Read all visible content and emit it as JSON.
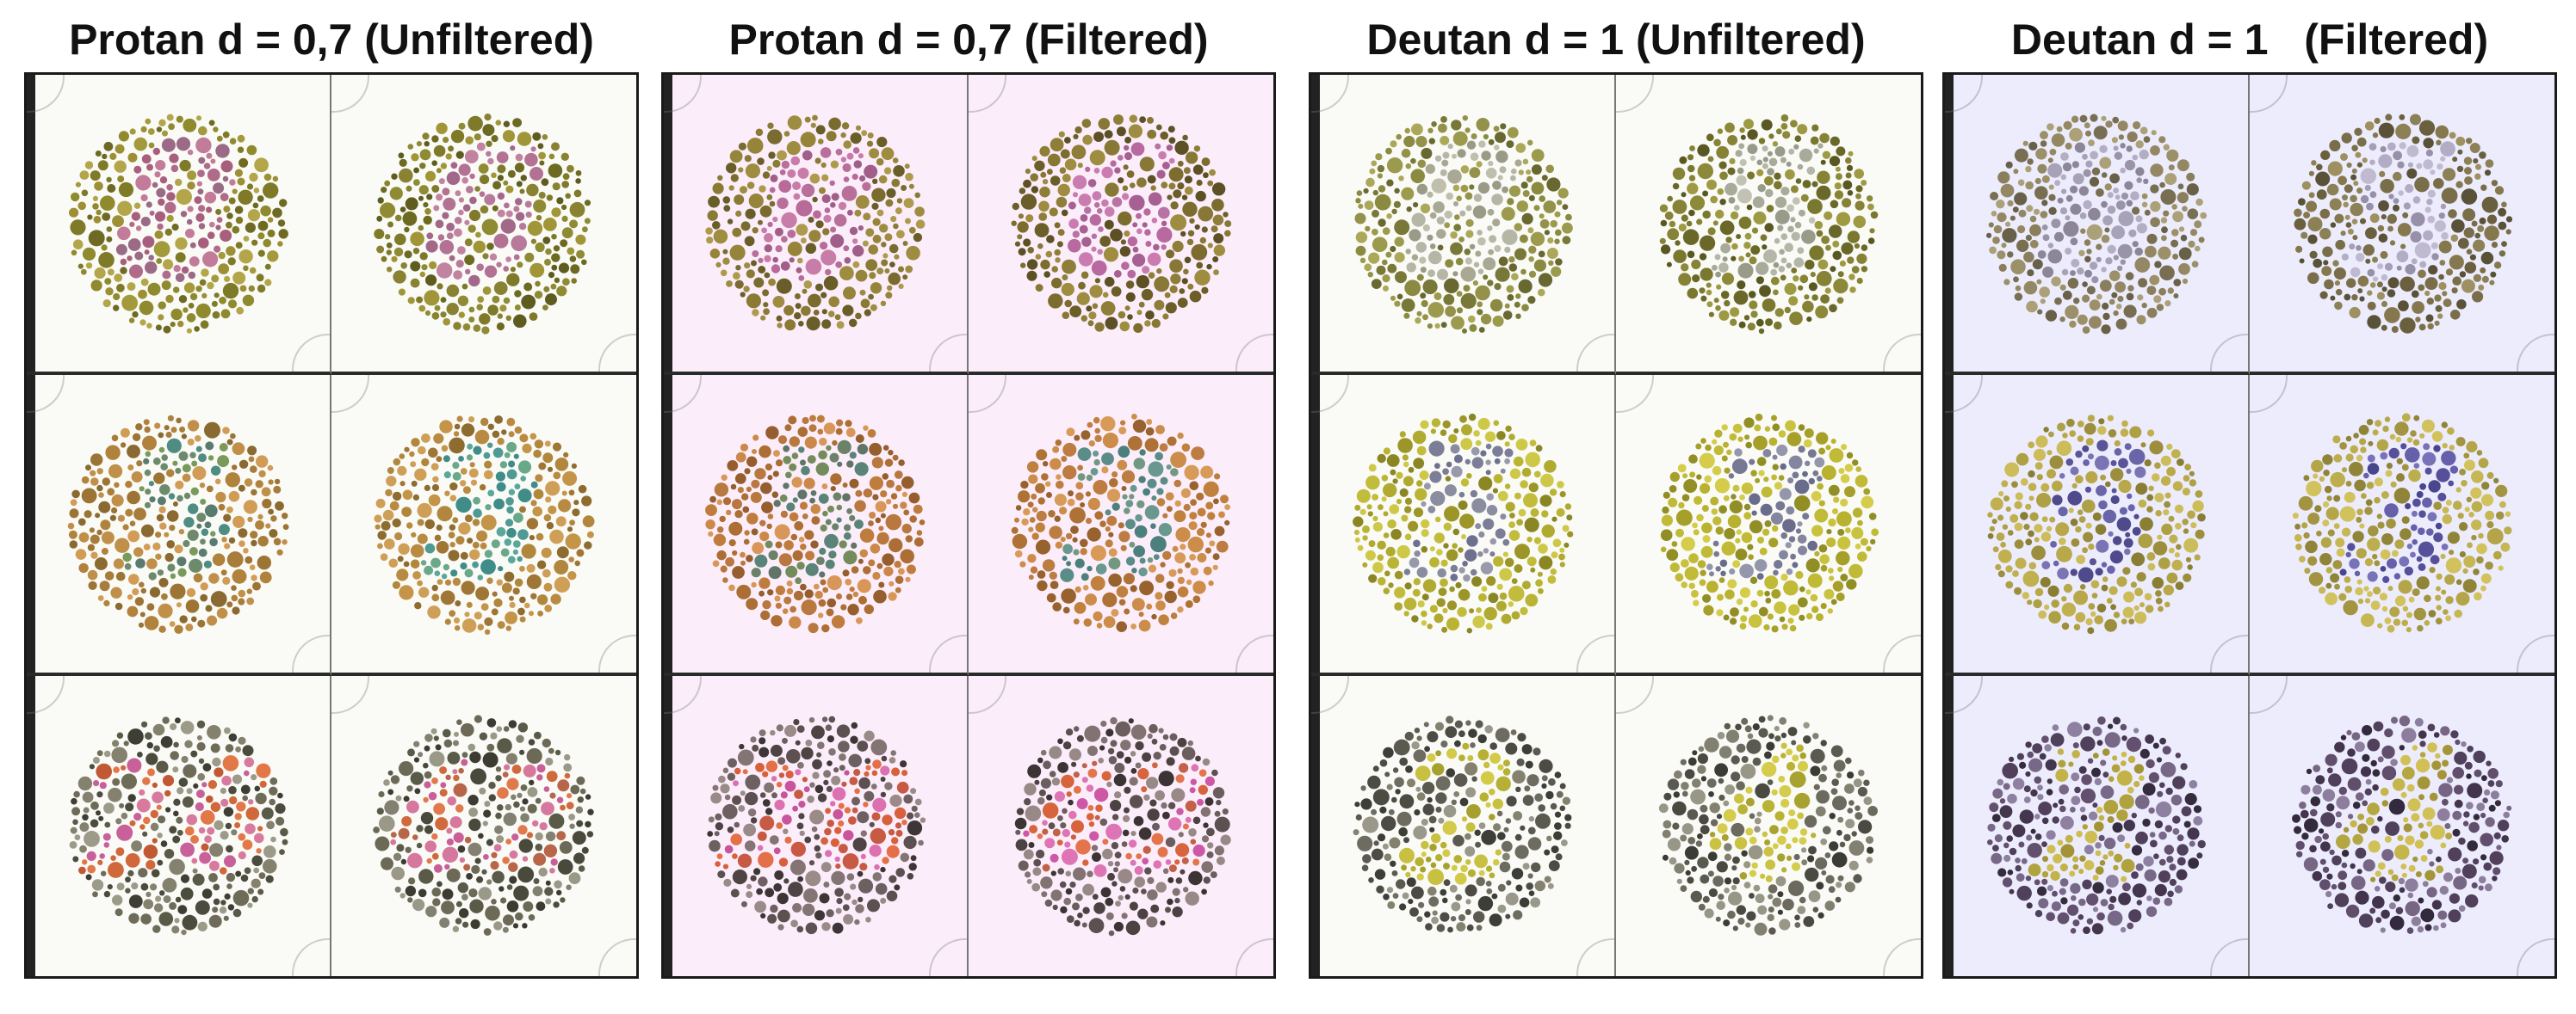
{
  "panels": [
    {
      "title": "Protan d = 0,7 (Unfiltered)",
      "background": "#fafaf6",
      "plates": [
        {
          "figure": "8",
          "bg_colors": [
            "#8f8a2e",
            "#a39a3c",
            "#7f7a28",
            "#b3a64a",
            "#6e6a24",
            "#9c8f34"
          ],
          "fig_colors": [
            "#b06a8a",
            "#c27b98",
            "#9a6a86",
            "#a85f7d"
          ]
        },
        {
          "figure": "6",
          "bg_colors": [
            "#7e7a2a",
            "#8f8a34",
            "#6d6a22",
            "#a09638",
            "#5e5c1e",
            "#888232"
          ],
          "fig_colors": [
            "#b37293",
            "#c283a0",
            "#a2688a",
            "#b87a9a"
          ]
        },
        {
          "figure": "5",
          "bg_colors": [
            "#b0823c",
            "#c0904a",
            "#9c7434",
            "#d09c56",
            "#8a6a30",
            "#a87c3a"
          ],
          "fig_colors": [
            "#6e8a6c",
            "#4f8c82",
            "#7a9a5c",
            "#5a7c70"
          ]
        },
        {
          "figure": "3",
          "bg_colors": [
            "#b0873c",
            "#c49448",
            "#a07636",
            "#cf9f58",
            "#8e6c30",
            "#b98a42"
          ],
          "fig_colors": [
            "#4f9a94",
            "#5aa89a",
            "#3f8c88",
            "#6aa88a"
          ]
        },
        {
          "figure": "26",
          "bg_colors": [
            "#5a5a48",
            "#6e6c58",
            "#4c4c3e",
            "#84826e",
            "#3e3e34",
            "#9c9a88"
          ],
          "fig_colors": [
            "#d0683c",
            "#e27848",
            "#c15a34",
            "#c8609a",
            "#d87a9e"
          ]
        },
        {
          "figure": "42",
          "bg_colors": [
            "#5a5a48",
            "#6c6a56",
            "#4a4a3c",
            "#828070",
            "#3c3c32",
            "#9a9886"
          ],
          "fig_colors": [
            "#d06a3c",
            "#e07a4c",
            "#c85f98",
            "#d6789e",
            "#b8664a"
          ]
        }
      ]
    },
    {
      "title": "Protan d = 0,7 (Filtered)",
      "background": "#fbeefa",
      "plates": [
        {
          "figure": "8",
          "bg_colors": [
            "#8a7a34",
            "#9e8c40",
            "#7a6c2e",
            "#ae9a4c",
            "#6a5e28",
            "#96843a"
          ],
          "fig_colors": [
            "#b86a98",
            "#c87ca8",
            "#a05e88",
            "#b8709a"
          ]
        },
        {
          "figure": "6",
          "bg_colors": [
            "#7c6c2e",
            "#8e7e38",
            "#6c5e28",
            "#9e8c40",
            "#5c5024",
            "#887836"
          ],
          "fig_colors": [
            "#b86aa0",
            "#ca7cb0",
            "#a66092",
            "#b872a4"
          ]
        },
        {
          "figure": "5",
          "bg_colors": [
            "#c07c3c",
            "#cc884a",
            "#ac6e34",
            "#d89658",
            "#965e2e",
            "#b87840"
          ],
          "fig_colors": [
            "#6c8268",
            "#5a8478",
            "#748c5c",
            "#607468"
          ]
        },
        {
          "figure": "3",
          "bg_colors": [
            "#c0803e",
            "#cc8c4a",
            "#ae7236",
            "#d89a58",
            "#98622e",
            "#bc7c42"
          ],
          "fig_colors": [
            "#5a8c88",
            "#68988e",
            "#4c807c",
            "#729882"
          ]
        },
        {
          "figure": "26",
          "bg_colors": [
            "#5c5050",
            "#6e6060",
            "#4e4444",
            "#847474",
            "#3e3636",
            "#9a8a88"
          ],
          "fig_colors": [
            "#d8603c",
            "#e47048",
            "#c8549c",
            "#dc70b0",
            "#c85a44"
          ]
        },
        {
          "figure": "42",
          "bg_colors": [
            "#5c5050",
            "#6c5e5e",
            "#4c4242",
            "#827272",
            "#3c3434",
            "#988886"
          ],
          "fig_colors": [
            "#d8643e",
            "#e4744c",
            "#cc58a6",
            "#de74b4",
            "#c26048"
          ]
        }
      ]
    },
    {
      "title": "Deutan d = 1 (Unfiltered)",
      "background": "#fafaf6",
      "plates": [
        {
          "figure": "8",
          "bg_colors": [
            "#8a8a40",
            "#9c9a4c",
            "#787838",
            "#aca85a",
            "#686830",
            "#94924a"
          ],
          "fig_colors": [
            "#a8a894",
            "#b6b6a6",
            "#9a9a86",
            "#c0bfae"
          ]
        },
        {
          "figure": "5",
          "bg_colors": [
            "#7a782e",
            "#8c8a38",
            "#6a6828",
            "#9e9a44",
            "#5a5822",
            "#868236"
          ],
          "fig_colors": [
            "#a8aa9a",
            "#b4b6a8",
            "#989a8a",
            "#c2c2b4"
          ]
        },
        {
          "figure": "5",
          "bg_colors": [
            "#b0aa30",
            "#c2bc3c",
            "#9c9628",
            "#cec848",
            "#8a8624",
            "#bab434"
          ],
          "fig_colors": [
            "#8a8ca0",
            "#7c7e98",
            "#989aac",
            "#6e7090"
          ]
        },
        {
          "figure": "3",
          "bg_colors": [
            "#b8b230",
            "#c8c23e",
            "#a6a02a",
            "#d4cc4a",
            "#928e26",
            "#c0ba36"
          ],
          "fig_colors": [
            "#8486a0",
            "#767894",
            "#9496ac",
            "#6a6c8c"
          ]
        },
        {
          "figure": "2",
          "bg_colors": [
            "#5a5a50",
            "#6e6c60",
            "#4c4c44",
            "#84826e",
            "#3e3e38",
            "#9a988a"
          ],
          "fig_colors": [
            "#b6b034",
            "#c8c040",
            "#a6a02e",
            "#d2ca48"
          ]
        },
        {
          "figure": "4",
          "bg_colors": [
            "#5a5a50",
            "#6c6a5e",
            "#4a4a42",
            "#828070",
            "#3c3c36",
            "#989686"
          ],
          "fig_colors": [
            "#b8b236",
            "#cac242",
            "#a8a230",
            "#d4cc4a"
          ]
        }
      ]
    },
    {
      "title": "Deutan d = 1   (Filtered)",
      "background": "#ececfc",
      "plates": [
        {
          "figure": "8",
          "bg_colors": [
            "#8a7e5c",
            "#9c9068",
            "#786e52",
            "#aca078",
            "#686048",
            "#948864"
          ],
          "fig_colors": [
            "#9a94a8",
            "#a8a2b8",
            "#8c8698",
            "#b4aec4"
          ]
        },
        {
          "figure": "5",
          "bg_colors": [
            "#7a6e4a",
            "#8c8056",
            "#6a6040",
            "#9e9060",
            "#5a5238",
            "#86784e"
          ],
          "fig_colors": [
            "#a69eb6",
            "#b2acc4",
            "#9890a8",
            "#c0bad0"
          ]
        },
        {
          "figure": "5",
          "bg_colors": [
            "#aea044",
            "#c0b050",
            "#9c8e3c",
            "#ccbc5a",
            "#8a7e34",
            "#b8a84a"
          ],
          "fig_colors": [
            "#6a64a8",
            "#5a5498",
            "#7a74b4",
            "#4e4a8c"
          ]
        },
        {
          "figure": "3",
          "bg_colors": [
            "#b4a648",
            "#c6b654",
            "#a29440",
            "#d2c25e",
            "#908438",
            "#bcae4c"
          ],
          "fig_colors": [
            "#6660aa",
            "#56509a",
            "#7872b8",
            "#4a468e"
          ]
        },
        {
          "figure": "2",
          "bg_colors": [
            "#50405c",
            "#62506e",
            "#44364e",
            "#786888",
            "#362c40",
            "#8e80a0"
          ],
          "fig_colors": [
            "#b0a23c",
            "#c2b248",
            "#a29434",
            "#cebe52"
          ]
        },
        {
          "figure": "4",
          "bg_colors": [
            "#50405c",
            "#604e6c",
            "#42344c",
            "#766684",
            "#342a3e",
            "#8c7e9c"
          ],
          "fig_colors": [
            "#b4a640",
            "#c4b64a",
            "#a49638",
            "#d0c056"
          ]
        }
      ]
    }
  ]
}
